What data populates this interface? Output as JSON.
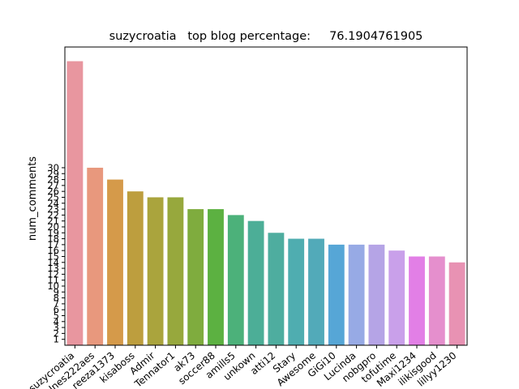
{
  "chart_data": {
    "type": "bar",
    "title": "suzycroatia   top blog percentage:     76.1904761905",
    "xlabel": "",
    "ylabel": "num_comments",
    "categories": [
      "suzycroatia",
      "Ines222aes",
      "reeza1373",
      "kisaboss",
      "Admir",
      "Tennator1",
      "ak73",
      "soccer88",
      "amills5",
      "unkown",
      "atti12",
      "Stary",
      "Awesome",
      "GiGi10",
      "Lucinda",
      "nobgpro",
      "tofutime",
      "Maxi1234",
      "ilikisgood",
      "lillyy1230"
    ],
    "values": [
      48,
      30,
      28,
      26,
      25,
      25,
      23,
      23,
      22,
      21,
      19,
      18,
      18,
      17,
      17,
      17,
      16,
      15,
      15,
      14
    ],
    "colors": [
      "#e8969f",
      "#e8987d",
      "#d59a4a",
      "#bd9e3e",
      "#aaa43d",
      "#97a83d",
      "#7fac3e",
      "#5cb141",
      "#4cb17a",
      "#4cae97",
      "#4ead9f",
      "#4fadb0",
      "#52aab9",
      "#56a6d6",
      "#97aae5",
      "#b5a4e6",
      "#c9a0ea",
      "#e27fe6",
      "#e58fcd",
      "#e892b3"
    ],
    "yticks": [
      1,
      2,
      3,
      4,
      5,
      6,
      7,
      8,
      9,
      10,
      11,
      12,
      13,
      14,
      15,
      16,
      17,
      18,
      19,
      20,
      21,
      22,
      23,
      24,
      25,
      26,
      27,
      28,
      29,
      30
    ],
    "ylim": [
      0,
      50.4
    ],
    "grid": false,
    "legend": "none"
  }
}
